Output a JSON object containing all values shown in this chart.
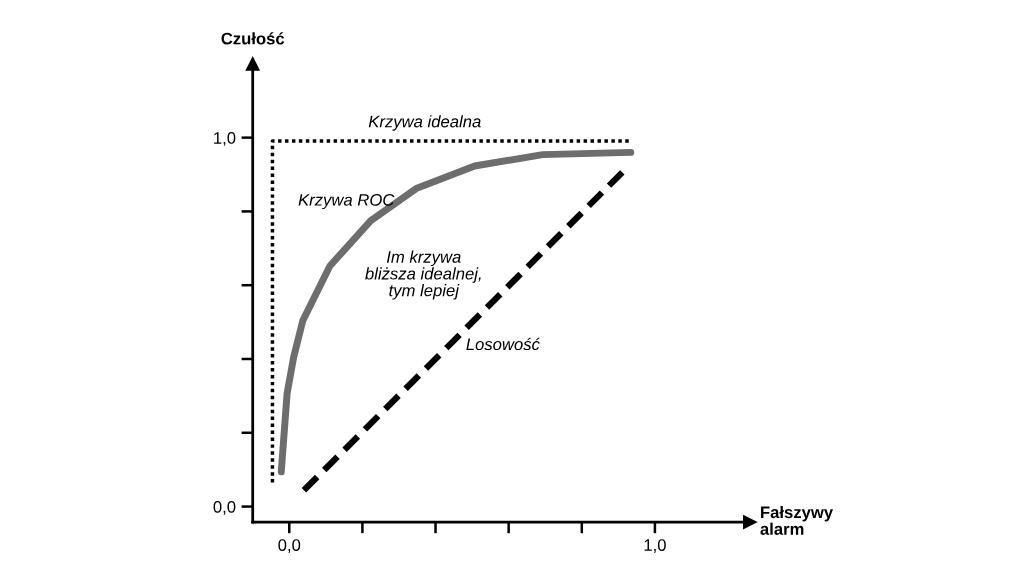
{
  "chart_data": {
    "type": "line",
    "xlabel": "Fałszywy\nalarm",
    "ylabel": "Czułość",
    "series": [
      {
        "name": "Krzywa idealna",
        "color": "#000000",
        "line_style": "dotted",
        "x": [
          -0.046,
          -0.046,
          0.934
        ],
        "values": [
          0.065,
          0.991,
          0.991
        ]
      },
      {
        "name": "Krzywa ROC",
        "color": "#6d6d6d",
        "line_style": "solid",
        "x": [
          -0.022,
          -0.006,
          0.012,
          0.037,
          0.111,
          0.223,
          0.347,
          0.507,
          0.693,
          0.934
        ],
        "values": [
          0.094,
          0.306,
          0.405,
          0.504,
          0.652,
          0.775,
          0.862,
          0.923,
          0.954,
          0.96
        ]
      },
      {
        "name": "Losowość",
        "color": "#000000",
        "line_style": "dashed",
        "x": [
          0.04,
          0.922
        ],
        "values": [
          0.044,
          0.917
        ]
      }
    ],
    "xlim": [
      -0.1,
      1.26
    ],
    "ylim": [
      -0.042,
      1.2
    ],
    "xticks": [
      {
        "value": 0,
        "label": "0,0"
      },
      {
        "value": 0.2,
        "label": null
      },
      {
        "value": 0.4,
        "label": null
      },
      {
        "value": 0.6,
        "label": null
      },
      {
        "value": 0.8,
        "label": null
      },
      {
        "value": 1,
        "label": "1,0"
      }
    ],
    "yticks": [
      {
        "value": 0,
        "label": "0,0"
      },
      {
        "value": 0.2,
        "label": null
      },
      {
        "value": 0.4,
        "label": null
      },
      {
        "value": 0.6,
        "label": null
      },
      {
        "value": 0.8,
        "label": null
      },
      {
        "value": 1,
        "label": "1,0"
      }
    ],
    "annotations": [
      "Im krzywa\nbliższa idealnej,\ntym lepiej"
    ],
    "grid": false,
    "legend": false
  }
}
